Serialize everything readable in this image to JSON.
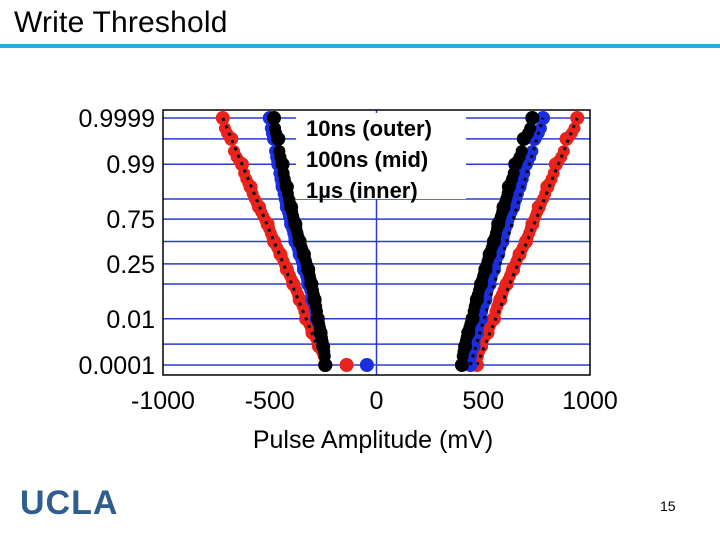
{
  "slide": {
    "title": "Write Threshold",
    "logo": "UCLA",
    "page_number": "15"
  },
  "colors": {
    "title_rule": "#2aa7df",
    "grid": "#2a3ccf",
    "series_10ns": "#e8231c",
    "series_100ns": "#1a2ee0",
    "series_1us": "#000000"
  },
  "chart_data": {
    "type": "scatter",
    "xlabel": "Pulse Amplitude (mV)",
    "ylabel": "",
    "xlim": [
      -1000,
      1000
    ],
    "x_ticks": [
      -1000,
      -500,
      0,
      500,
      1000
    ],
    "x_tick_labels": [
      "-1000",
      "-500",
      "0",
      "500",
      "1000"
    ],
    "y_scale": "probit",
    "y_ticks": [
      0.0001,
      0.01,
      0.25,
      0.75,
      0.99,
      0.9999
    ],
    "y_tick_labels": [
      "0.0001",
      "0.01",
      "0.25",
      "0.75",
      "0.99",
      "0.9999"
    ],
    "grid": "horizontal + vertical at x=0",
    "legend": [
      "10ns (outer)",
      "100ns (mid)",
      "1µs (inner)"
    ],
    "legend_position": "top-center",
    "series": [
      {
        "name": "10ns (outer)",
        "color": "#e8231c",
        "negative": {
          "x": [
            -720,
            -680,
            -630,
            -590,
            -550,
            -510,
            -480,
            -450,
            -420,
            -390,
            -360,
            -330,
            -300,
            -270,
            -240
          ],
          "y": [
            0.9999,
            0.999,
            0.99,
            0.95,
            0.85,
            0.7,
            0.5,
            0.35,
            0.2,
            0.1,
            0.04,
            0.01,
            0.003,
            0.0008,
            0.0001
          ]
        },
        "positive": {
          "x": [
            470,
            490,
            520,
            550,
            580,
            610,
            640,
            670,
            700,
            730,
            760,
            800,
            840,
            890,
            940
          ],
          "y": [
            0.0001,
            0.0008,
            0.003,
            0.01,
            0.04,
            0.1,
            0.2,
            0.35,
            0.5,
            0.7,
            0.85,
            0.95,
            0.99,
            0.999,
            0.9999
          ]
        },
        "outlier": {
          "x": [
            -140
          ],
          "y": [
            0.0001
          ]
        }
      },
      {
        "name": "100ns (mid)",
        "color": "#1a2ee0",
        "negative": {
          "x": [
            -500,
            -480,
            -460,
            -440,
            -420,
            -400,
            -380,
            -360,
            -340,
            -320,
            -300,
            -280,
            -265,
            -250,
            -240
          ],
          "y": [
            0.9999,
            0.999,
            0.99,
            0.95,
            0.85,
            0.7,
            0.5,
            0.35,
            0.2,
            0.1,
            0.04,
            0.01,
            0.003,
            0.0008,
            0.0001
          ]
        },
        "positive": {
          "x": [
            440,
            455,
            470,
            490,
            510,
            530,
            550,
            570,
            590,
            610,
            640,
            670,
            700,
            740,
            780
          ],
          "y": [
            0.0001,
            0.0008,
            0.003,
            0.01,
            0.04,
            0.1,
            0.2,
            0.35,
            0.5,
            0.7,
            0.85,
            0.95,
            0.99,
            0.999,
            0.9999
          ]
        },
        "outlier": {
          "x": [
            -45
          ],
          "y": [
            0.0001
          ]
        }
      },
      {
        "name": "1µs (inner)",
        "color": "#000000",
        "negative": {
          "x": [
            -480,
            -460,
            -440,
            -420,
            -400,
            -380,
            -360,
            -340,
            -320,
            -305,
            -290,
            -275,
            -262,
            -250,
            -240
          ],
          "y": [
            0.9999,
            0.999,
            0.99,
            0.95,
            0.85,
            0.7,
            0.5,
            0.35,
            0.2,
            0.1,
            0.04,
            0.01,
            0.003,
            0.0008,
            0.0001
          ]
        },
        "positive": {
          "x": [
            400,
            415,
            430,
            450,
            470,
            490,
            510,
            530,
            550,
            570,
            595,
            620,
            650,
            690,
            730
          ],
          "y": [
            0.0001,
            0.0008,
            0.003,
            0.01,
            0.04,
            0.1,
            0.2,
            0.35,
            0.5,
            0.7,
            0.85,
            0.95,
            0.99,
            0.999,
            0.9999
          ]
        }
      }
    ]
  }
}
